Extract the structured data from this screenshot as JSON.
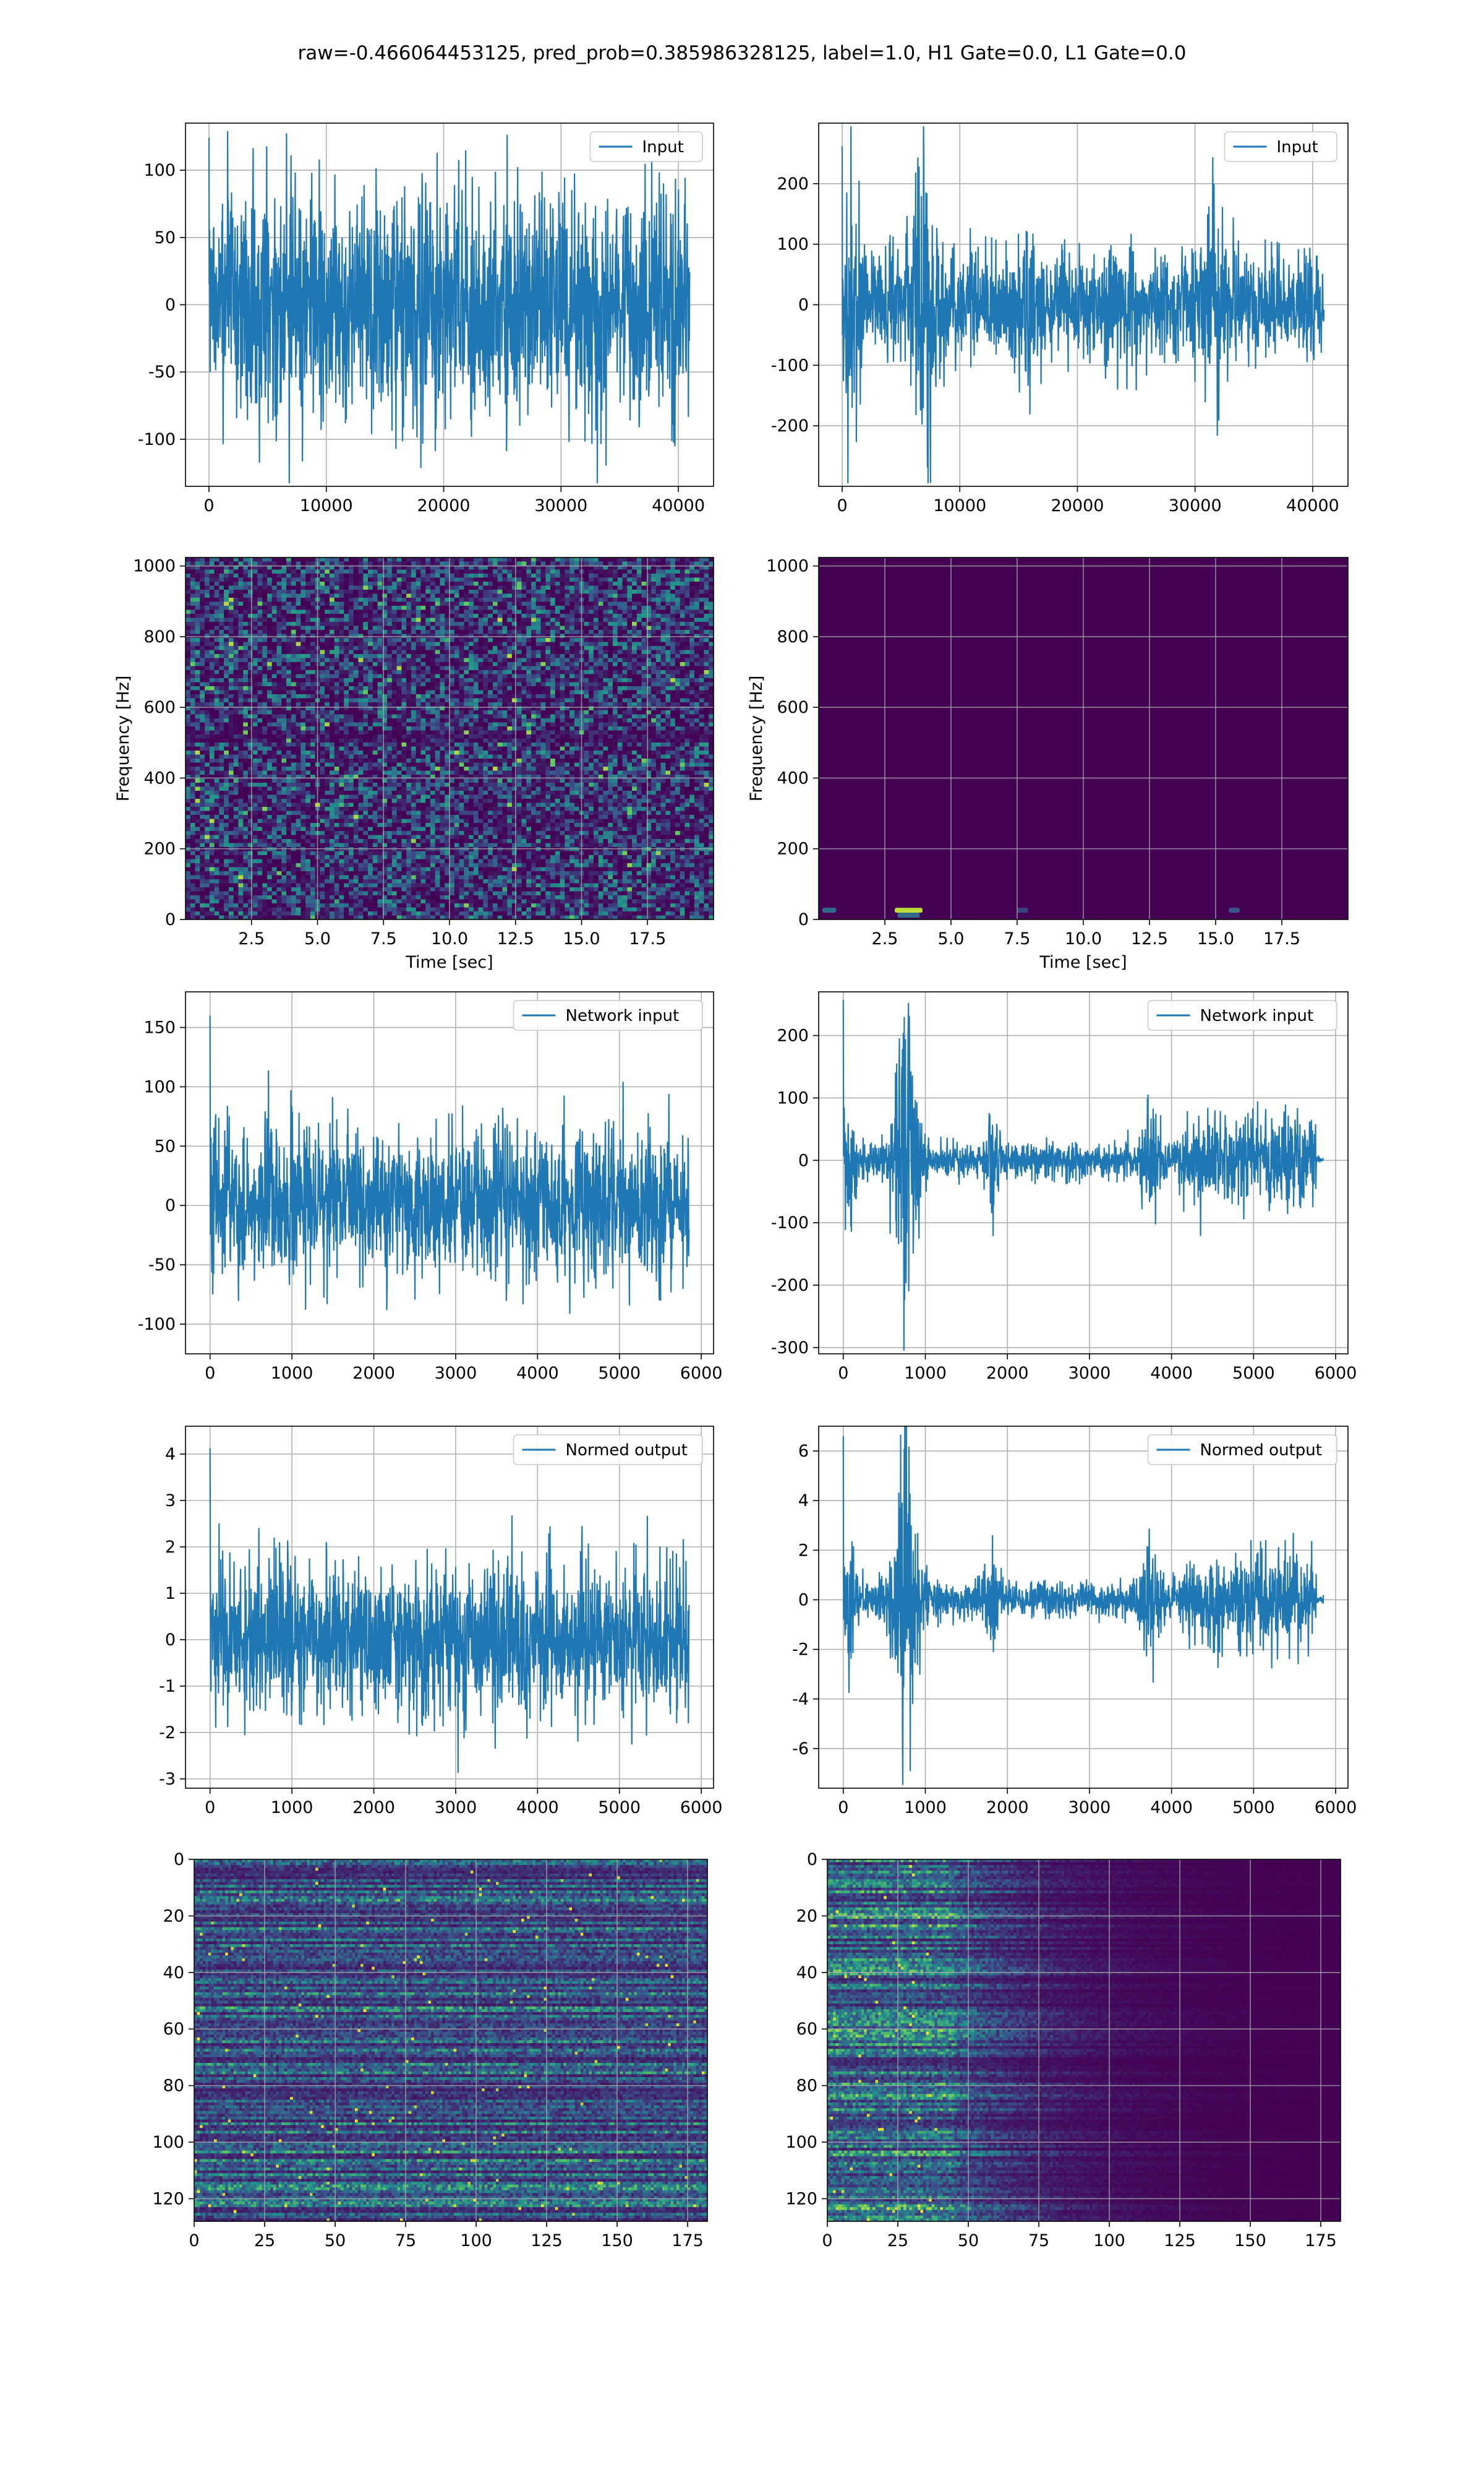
{
  "figure": {
    "title": "raw=-0.466064453125, pred_prob=0.385986328125, label=1.0, H1 Gate=0.0, L1 Gate=0.0"
  },
  "colors": {
    "line": "#1f77b4",
    "grid": "#b0b0b0",
    "viridis_dark": "#440154",
    "viridis_mid": "#21918c",
    "viridis_bright": "#fde725"
  },
  "chart_data": [
    {
      "id": "input-h1",
      "type": "line",
      "series_name": "Input",
      "legend": "top-right",
      "xlim": [
        -2000,
        43000
      ],
      "ylim": [
        -135,
        135
      ],
      "xticks": [
        0,
        10000,
        20000,
        30000,
        40000
      ],
      "yticks": [
        -100,
        -50,
        0,
        50,
        100
      ],
      "x_extent": [
        0,
        40960
      ],
      "envelope_profile": "stationary",
      "amplitude": 75,
      "peak": 128,
      "grid": true
    },
    {
      "id": "input-l1",
      "type": "line",
      "series_name": "Input",
      "legend": "top-right",
      "xlim": [
        -2000,
        43000
      ],
      "ylim": [
        -300,
        300
      ],
      "xticks": [
        0,
        10000,
        20000,
        30000,
        40000
      ],
      "yticks": [
        -200,
        -100,
        0,
        100,
        200
      ],
      "x_extent": [
        0,
        40960
      ],
      "envelope_profile": "glitchy-input",
      "amplitude": 90,
      "peak": 270,
      "grid": true
    },
    {
      "id": "spectrogram-h1",
      "type": "heatmap",
      "style": "noise",
      "xlim": [
        0,
        20
      ],
      "ylim": [
        0,
        1024
      ],
      "xticks": [
        2.5,
        5.0,
        7.5,
        10.0,
        12.5,
        15.0,
        17.5
      ],
      "yticks": [
        0,
        200,
        400,
        600,
        800,
        1000
      ],
      "xlabel": "Time [sec]",
      "ylabel": "Frequency [Hz]",
      "grid": true
    },
    {
      "id": "spectrogram-l1",
      "type": "heatmap",
      "style": "dark",
      "xlim": [
        0,
        20
      ],
      "ylim": [
        0,
        1024
      ],
      "xticks": [
        2.5,
        5.0,
        7.5,
        10.0,
        12.5,
        15.0,
        17.5
      ],
      "yticks": [
        0,
        200,
        400,
        600,
        800,
        1000
      ],
      "xlabel": "Time [sec]",
      "ylabel": "Frequency [Hz]",
      "grid": true
    },
    {
      "id": "network-input-h1",
      "type": "line",
      "series_name": "Network input",
      "legend": "top-right",
      "xlim": [
        -300,
        6150
      ],
      "ylim": [
        -125,
        180
      ],
      "xticks": [
        0,
        1000,
        2000,
        3000,
        4000,
        5000,
        6000
      ],
      "yticks": [
        -100,
        -50,
        0,
        50,
        100,
        150
      ],
      "x_extent": [
        0,
        5850
      ],
      "envelope_profile": "stationary",
      "amplitude": 55,
      "peak": 165,
      "grid": true
    },
    {
      "id": "network-input-l1",
      "type": "line",
      "series_name": "Network input",
      "legend": "top-right",
      "xlim": [
        -300,
        6150
      ],
      "ylim": [
        -310,
        270
      ],
      "xticks": [
        0,
        1000,
        2000,
        3000,
        4000,
        5000,
        6000
      ],
      "yticks": [
        -300,
        -200,
        -100,
        0,
        100,
        200
      ],
      "x_extent": [
        0,
        5850
      ],
      "envelope_profile": "glitchy-output",
      "amplitude": 30,
      "peak": 265,
      "grid": true
    },
    {
      "id": "normed-output-h1",
      "type": "line",
      "series_name": "Normed output",
      "legend": "top-right",
      "xlim": [
        -300,
        6150
      ],
      "ylim": [
        -3.2,
        4.6
      ],
      "xticks": [
        0,
        1000,
        2000,
        3000,
        4000,
        5000,
        6000
      ],
      "yticks": [
        -3,
        -2,
        -1,
        0,
        1,
        2,
        3,
        4
      ],
      "x_extent": [
        0,
        5850
      ],
      "envelope_profile": "stationary",
      "amplitude": 1.4,
      "peak": 4.25,
      "grid": true
    },
    {
      "id": "normed-output-l1",
      "type": "line",
      "series_name": "Normed output",
      "legend": "top-right",
      "xlim": [
        -300,
        6150
      ],
      "ylim": [
        -7.6,
        7.0
      ],
      "xticks": [
        0,
        1000,
        2000,
        3000,
        4000,
        5000,
        6000
      ],
      "yticks": [
        -6,
        -4,
        -2,
        0,
        2,
        4,
        6
      ],
      "x_extent": [
        0,
        5850
      ],
      "envelope_profile": "glitchy-output",
      "amplitude": 0.8,
      "peak": 6.8,
      "grid": true
    },
    {
      "id": "feature-map-h1",
      "type": "heatmap",
      "style": "rows",
      "xlim": [
        0,
        182
      ],
      "ylim": [
        128,
        0
      ],
      "xticks": [
        0,
        25,
        50,
        75,
        100,
        125,
        150,
        175
      ],
      "yticks": [
        0,
        20,
        40,
        60,
        80,
        100,
        120
      ],
      "grid": true
    },
    {
      "id": "feature-map-l1",
      "type": "heatmap",
      "style": "decay",
      "xlim": [
        0,
        182
      ],
      "ylim": [
        128,
        0
      ],
      "xticks": [
        0,
        25,
        50,
        75,
        100,
        125,
        150,
        175
      ],
      "yticks": [
        0,
        20,
        40,
        60,
        80,
        100,
        120
      ],
      "grid": true
    }
  ]
}
